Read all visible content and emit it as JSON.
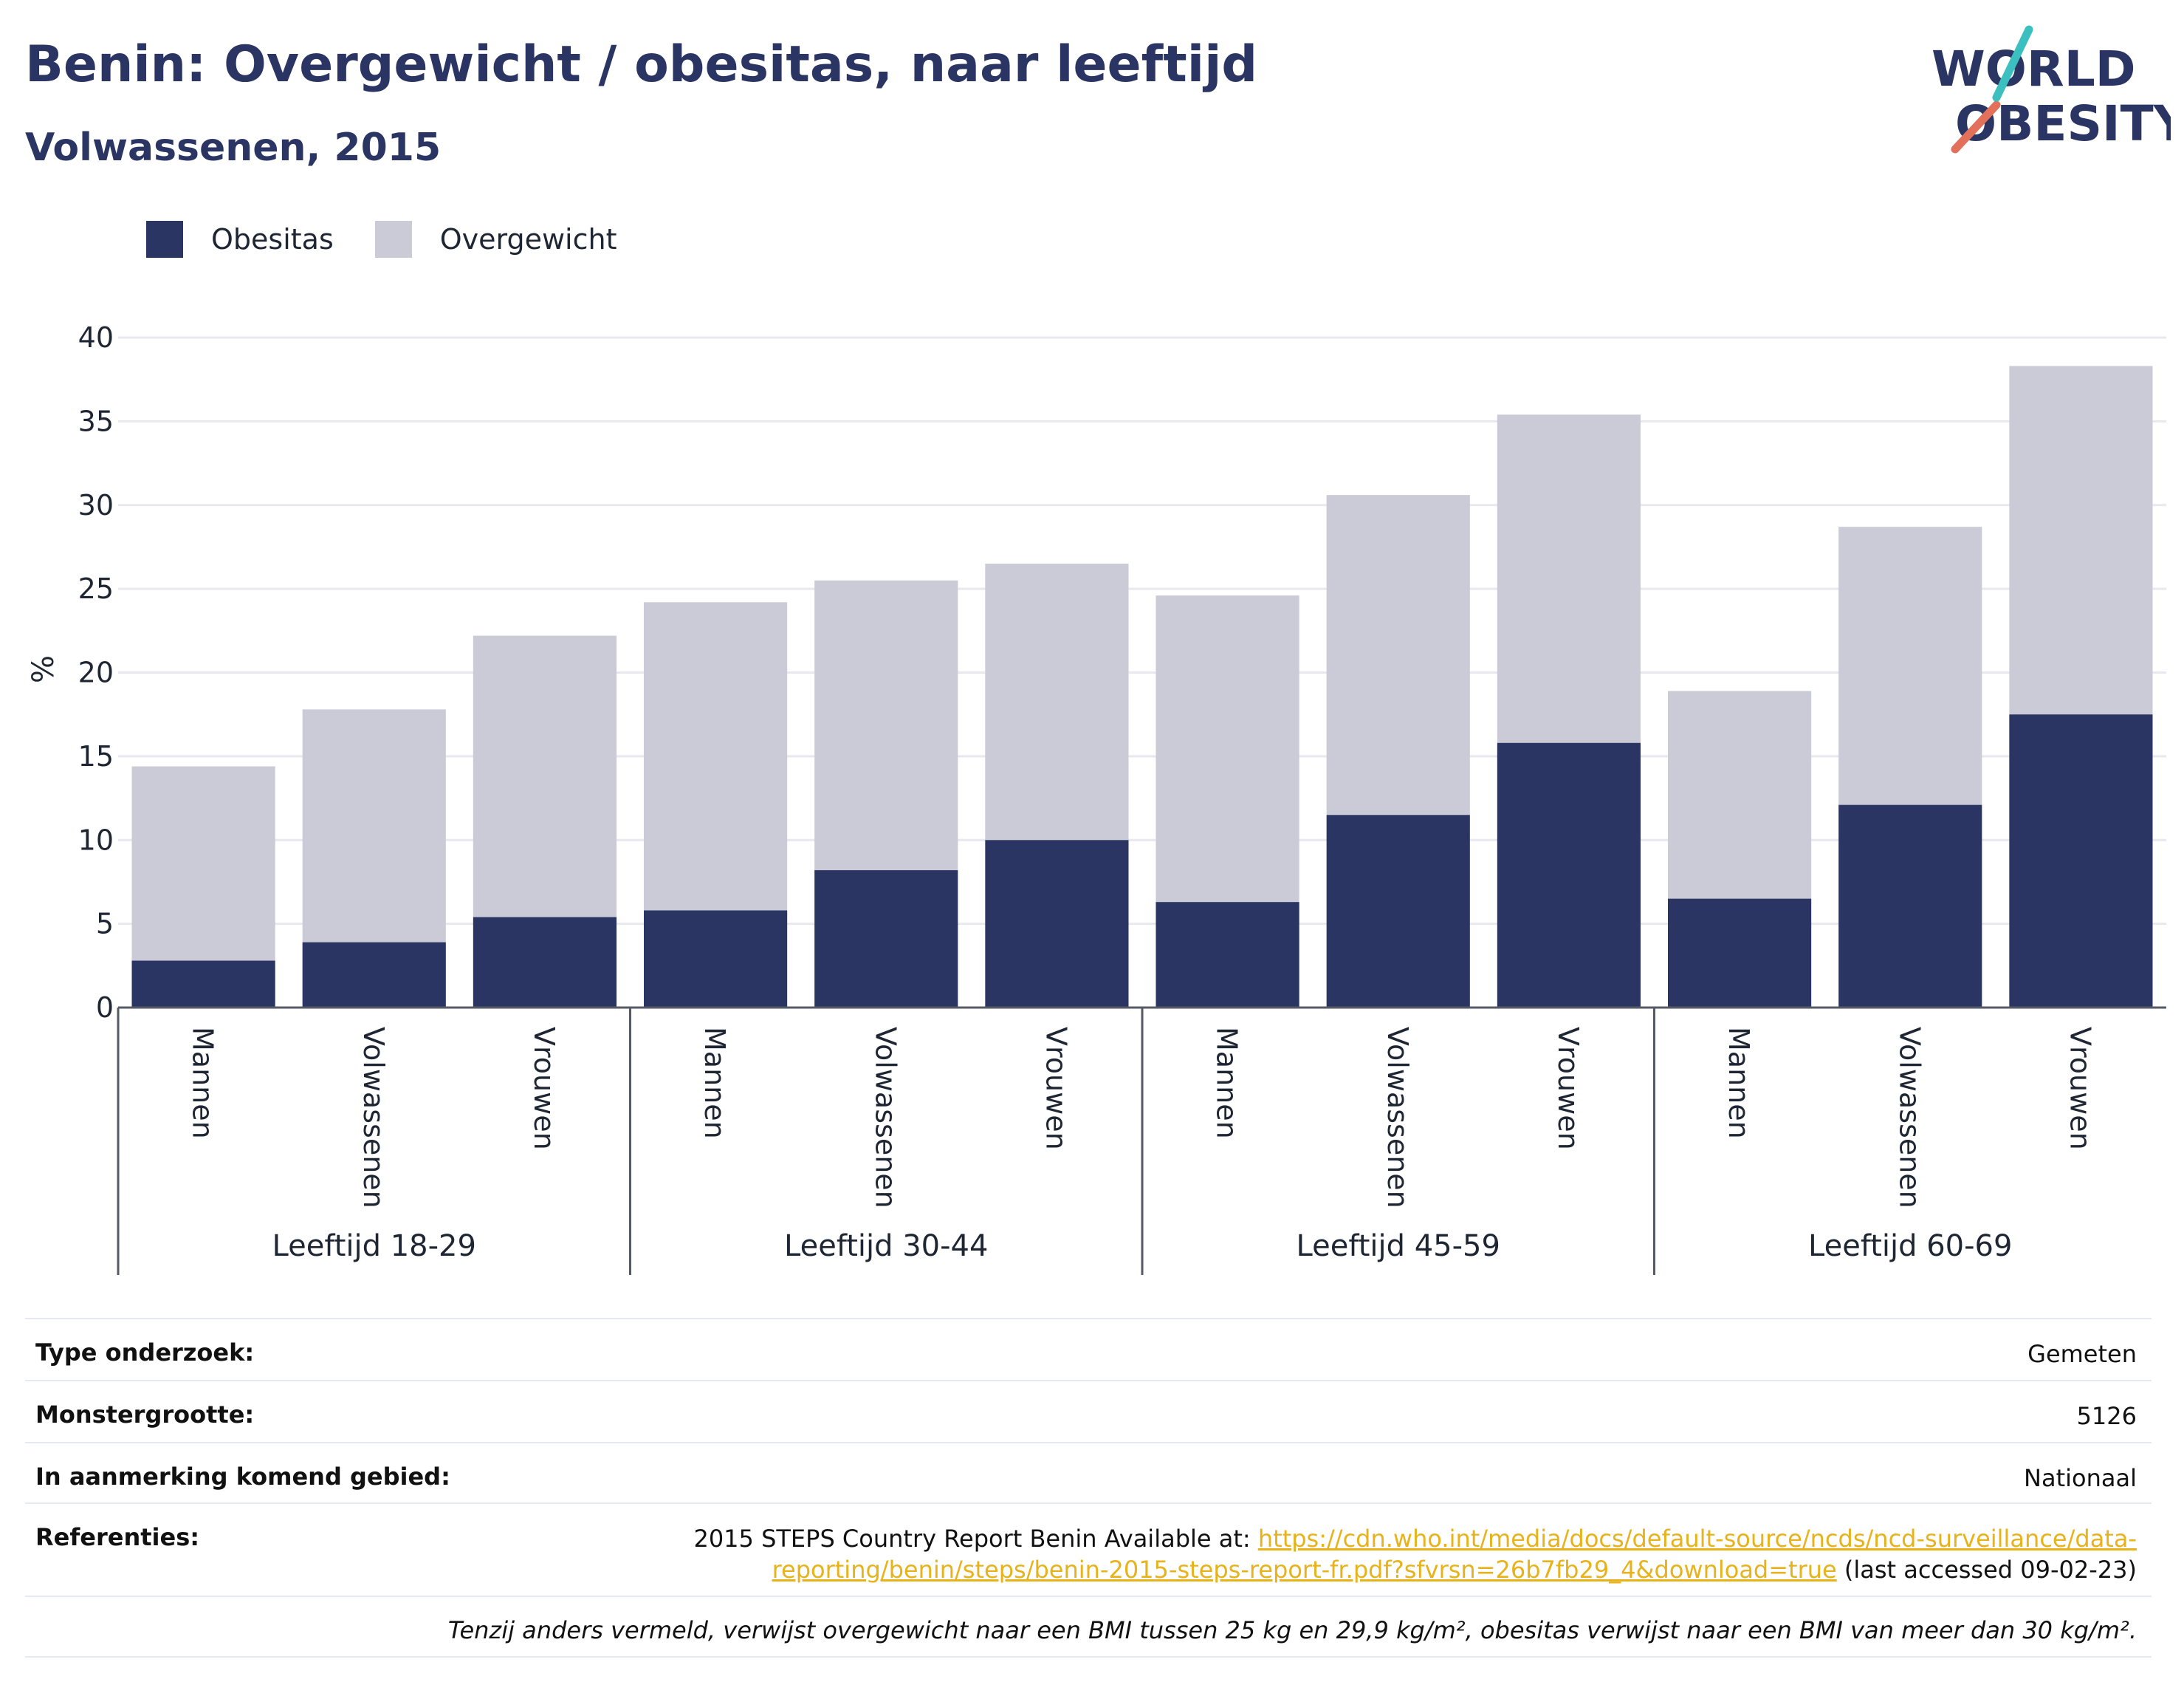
{
  "title": "Benin: Overgewicht / obesitas, naar leeftijd",
  "subtitle": "Volwassenen, 2015",
  "logo": {
    "line1": "WORLD",
    "line2": "OBESITY"
  },
  "colors": {
    "obesity": "#2b3563",
    "overweight": "#cacbd7",
    "accent": "#e8b21a",
    "title": "#2b3563"
  },
  "legend": [
    {
      "label": "Obesitas",
      "color": "#2b3563"
    },
    {
      "label": "Overgewicht",
      "color": "#cacbd7"
    }
  ],
  "chart_data": {
    "type": "bar",
    "stacked": true,
    "ylabel": "%",
    "ylim": [
      0,
      40
    ],
    "yticks": [
      0,
      5,
      10,
      15,
      20,
      25,
      30,
      35,
      40
    ],
    "grid": true,
    "legend_position": "top-left",
    "groups": [
      {
        "label": "Leeftijd 18-29",
        "categories": [
          "Mannen",
          "Volwassenen",
          "Vrouwen"
        ]
      },
      {
        "label": "Leeftijd 30-44",
        "categories": [
          "Mannen",
          "Volwassenen",
          "Vrouwen"
        ]
      },
      {
        "label": "Leeftijd 45-59",
        "categories": [
          "Mannen",
          "Volwassenen",
          "Vrouwen"
        ]
      },
      {
        "label": "Leeftijd 60-69",
        "categories": [
          "Mannen",
          "Volwassenen",
          "Vrouwen"
        ]
      }
    ],
    "series": [
      {
        "name": "Obesitas",
        "values": [
          2.8,
          3.9,
          5.4,
          5.8,
          8.2,
          10.0,
          6.3,
          11.5,
          15.8,
          6.5,
          12.1,
          17.5
        ]
      },
      {
        "name": "Overgewicht",
        "values": [
          11.6,
          13.9,
          16.8,
          18.4,
          17.3,
          16.5,
          18.3,
          19.1,
          19.6,
          12.4,
          16.6,
          20.8
        ]
      }
    ]
  },
  "info": [
    {
      "label": "Type onderzoek:",
      "value": "Gemeten"
    },
    {
      "label": "Monstergrootte:",
      "value": "5126"
    },
    {
      "label": "In aanmerking komend gebied:",
      "value": "Nationaal"
    }
  ],
  "references": {
    "label": "Referenties:",
    "prefix": "2015 STEPS Country Report Benin Available at:",
    "url_line1": "https://cdn.who.int/media/docs/default-source/ncds/ncd-surveillance/data-",
    "url_line2": "reporting/benin/steps/benin-2015-steps-report-fr.pdf?sfvrsn=26b7fb29_4&download=true",
    "suffix": "(last accessed 09-02-23)"
  },
  "footnote": "Tenzij anders vermeld, verwijst overgewicht naar een BMI tussen 25 kg en 29,9 kg/m², obesitas verwijst naar een BMI van meer dan 30 kg/m²."
}
